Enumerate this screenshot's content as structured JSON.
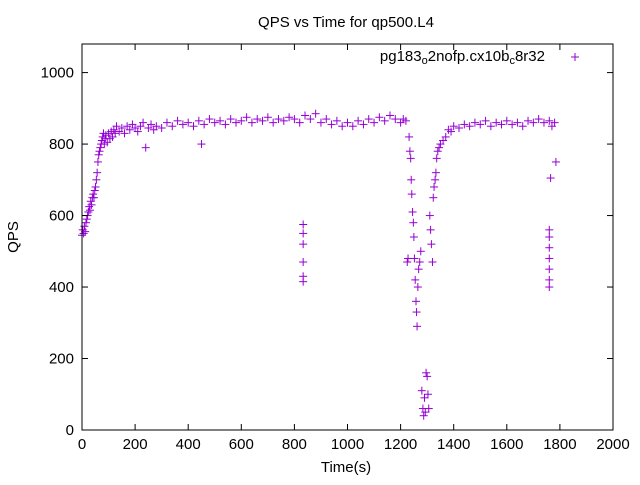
{
  "chart_data": {
    "type": "scatter",
    "title": "QPS vs Time for qp500.L4",
    "xlabel": "Time(s)",
    "ylabel": "QPS",
    "xlim": [
      0,
      2000
    ],
    "ylim": [
      0,
      1080
    ],
    "x_ticks": [
      "0",
      "200",
      "400",
      "600",
      "800",
      "1000",
      "1200",
      "1400",
      "1600",
      "1800",
      "2000"
    ],
    "y_ticks": [
      "0",
      "200",
      "400",
      "600",
      "800",
      "1000"
    ],
    "grid": false,
    "legend_position": "top-right",
    "marker": "plus",
    "series": [
      {
        "name_parts": {
          "a": "pg183",
          "sub1": "o",
          "b": "2nofp.cx10b",
          "sub2": "c",
          "c": "8r32"
        },
        "color": "#9400d3",
        "points": [
          [
            0,
            545
          ],
          [
            3,
            560
          ],
          [
            6,
            550
          ],
          [
            9,
            570
          ],
          [
            12,
            555
          ],
          [
            15,
            580
          ],
          [
            18,
            590
          ],
          [
            21,
            600
          ],
          [
            24,
            610
          ],
          [
            27,
            625
          ],
          [
            30,
            615
          ],
          [
            33,
            640
          ],
          [
            36,
            630
          ],
          [
            39,
            650
          ],
          [
            42,
            660
          ],
          [
            45,
            650
          ],
          [
            48,
            670
          ],
          [
            51,
            680
          ],
          [
            54,
            700
          ],
          [
            57,
            720
          ],
          [
            60,
            750
          ],
          [
            63,
            770
          ],
          [
            66,
            780
          ],
          [
            69,
            790
          ],
          [
            72,
            800
          ],
          [
            75,
            810
          ],
          [
            78,
            820
          ],
          [
            81,
            830
          ],
          [
            84,
            800
          ],
          [
            87,
            815
          ],
          [
            90,
            825
          ],
          [
            95,
            805
          ],
          [
            100,
            830
          ],
          [
            105,
            815
          ],
          [
            110,
            835
          ],
          [
            115,
            820
          ],
          [
            120,
            840
          ],
          [
            125,
            830
          ],
          [
            130,
            850
          ],
          [
            140,
            835
          ],
          [
            150,
            845
          ],
          [
            160,
            830
          ],
          [
            170,
            850
          ],
          [
            180,
            840
          ],
          [
            190,
            855
          ],
          [
            200,
            845
          ],
          [
            210,
            835
          ],
          [
            220,
            850
          ],
          [
            230,
            860
          ],
          [
            240,
            790
          ],
          [
            250,
            845
          ],
          [
            260,
            855
          ],
          [
            270,
            840
          ],
          [
            280,
            850
          ],
          [
            300,
            845
          ],
          [
            320,
            860
          ],
          [
            340,
            850
          ],
          [
            360,
            865
          ],
          [
            380,
            855
          ],
          [
            400,
            860
          ],
          [
            420,
            850
          ],
          [
            440,
            865
          ],
          [
            450,
            800
          ],
          [
            460,
            855
          ],
          [
            480,
            870
          ],
          [
            500,
            860
          ],
          [
            520,
            865
          ],
          [
            540,
            855
          ],
          [
            560,
            870
          ],
          [
            580,
            860
          ],
          [
            600,
            865
          ],
          [
            620,
            875
          ],
          [
            640,
            860
          ],
          [
            660,
            870
          ],
          [
            680,
            865
          ],
          [
            700,
            875
          ],
          [
            720,
            860
          ],
          [
            740,
            870
          ],
          [
            760,
            865
          ],
          [
            780,
            875
          ],
          [
            800,
            870
          ],
          [
            820,
            860
          ],
          [
            833,
            575
          ],
          [
            833,
            550
          ],
          [
            833,
            520
          ],
          [
            833,
            470
          ],
          [
            833,
            430
          ],
          [
            833,
            415
          ],
          [
            840,
            880
          ],
          [
            860,
            870
          ],
          [
            880,
            885
          ],
          [
            900,
            860
          ],
          [
            920,
            870
          ],
          [
            940,
            855
          ],
          [
            960,
            865
          ],
          [
            980,
            850
          ],
          [
            1000,
            860
          ],
          [
            1020,
            850
          ],
          [
            1040,
            865
          ],
          [
            1060,
            855
          ],
          [
            1080,
            870
          ],
          [
            1100,
            860
          ],
          [
            1120,
            875
          ],
          [
            1140,
            865
          ],
          [
            1160,
            880
          ],
          [
            1180,
            870
          ],
          [
            1200,
            860
          ],
          [
            1210,
            870
          ],
          [
            1220,
            865
          ],
          [
            1225,
            470
          ],
          [
            1228,
            480
          ],
          [
            1232,
            820
          ],
          [
            1235,
            780
          ],
          [
            1238,
            760
          ],
          [
            1240,
            700
          ],
          [
            1242,
            660
          ],
          [
            1245,
            610
          ],
          [
            1248,
            580
          ],
          [
            1250,
            540
          ],
          [
            1252,
            480
          ],
          [
            1255,
            420
          ],
          [
            1258,
            360
          ],
          [
            1260,
            330
          ],
          [
            1262,
            290
          ],
          [
            1265,
            400
          ],
          [
            1268,
            450
          ],
          [
            1272,
            470
          ],
          [
            1276,
            500
          ],
          [
            1280,
            110
          ],
          [
            1284,
            60
          ],
          [
            1287,
            40
          ],
          [
            1290,
            90
          ],
          [
            1293,
            50
          ],
          [
            1296,
            160
          ],
          [
            1300,
            150
          ],
          [
            1303,
            100
          ],
          [
            1306,
            60
          ],
          [
            1310,
            600
          ],
          [
            1313,
            560
          ],
          [
            1316,
            520
          ],
          [
            1320,
            470
          ],
          [
            1323,
            650
          ],
          [
            1326,
            680
          ],
          [
            1330,
            700
          ],
          [
            1333,
            720
          ],
          [
            1336,
            760
          ],
          [
            1340,
            780
          ],
          [
            1345,
            790
          ],
          [
            1350,
            800
          ],
          [
            1360,
            810
          ],
          [
            1370,
            820
          ],
          [
            1380,
            840
          ],
          [
            1390,
            835
          ],
          [
            1400,
            850
          ],
          [
            1420,
            845
          ],
          [
            1440,
            855
          ],
          [
            1460,
            850
          ],
          [
            1480,
            860
          ],
          [
            1500,
            855
          ],
          [
            1520,
            865
          ],
          [
            1540,
            850
          ],
          [
            1560,
            860
          ],
          [
            1580,
            855
          ],
          [
            1600,
            865
          ],
          [
            1620,
            855
          ],
          [
            1640,
            860
          ],
          [
            1660,
            850
          ],
          [
            1680,
            865
          ],
          [
            1700,
            860
          ],
          [
            1720,
            870
          ],
          [
            1740,
            860
          ],
          [
            1760,
            865
          ],
          [
            1760,
            560
          ],
          [
            1760,
            540
          ],
          [
            1760,
            510
          ],
          [
            1760,
            480
          ],
          [
            1760,
            450
          ],
          [
            1760,
            420
          ],
          [
            1760,
            400
          ],
          [
            1765,
            705
          ],
          [
            1770,
            850
          ],
          [
            1780,
            860
          ],
          [
            1785,
            750
          ]
        ]
      }
    ]
  }
}
